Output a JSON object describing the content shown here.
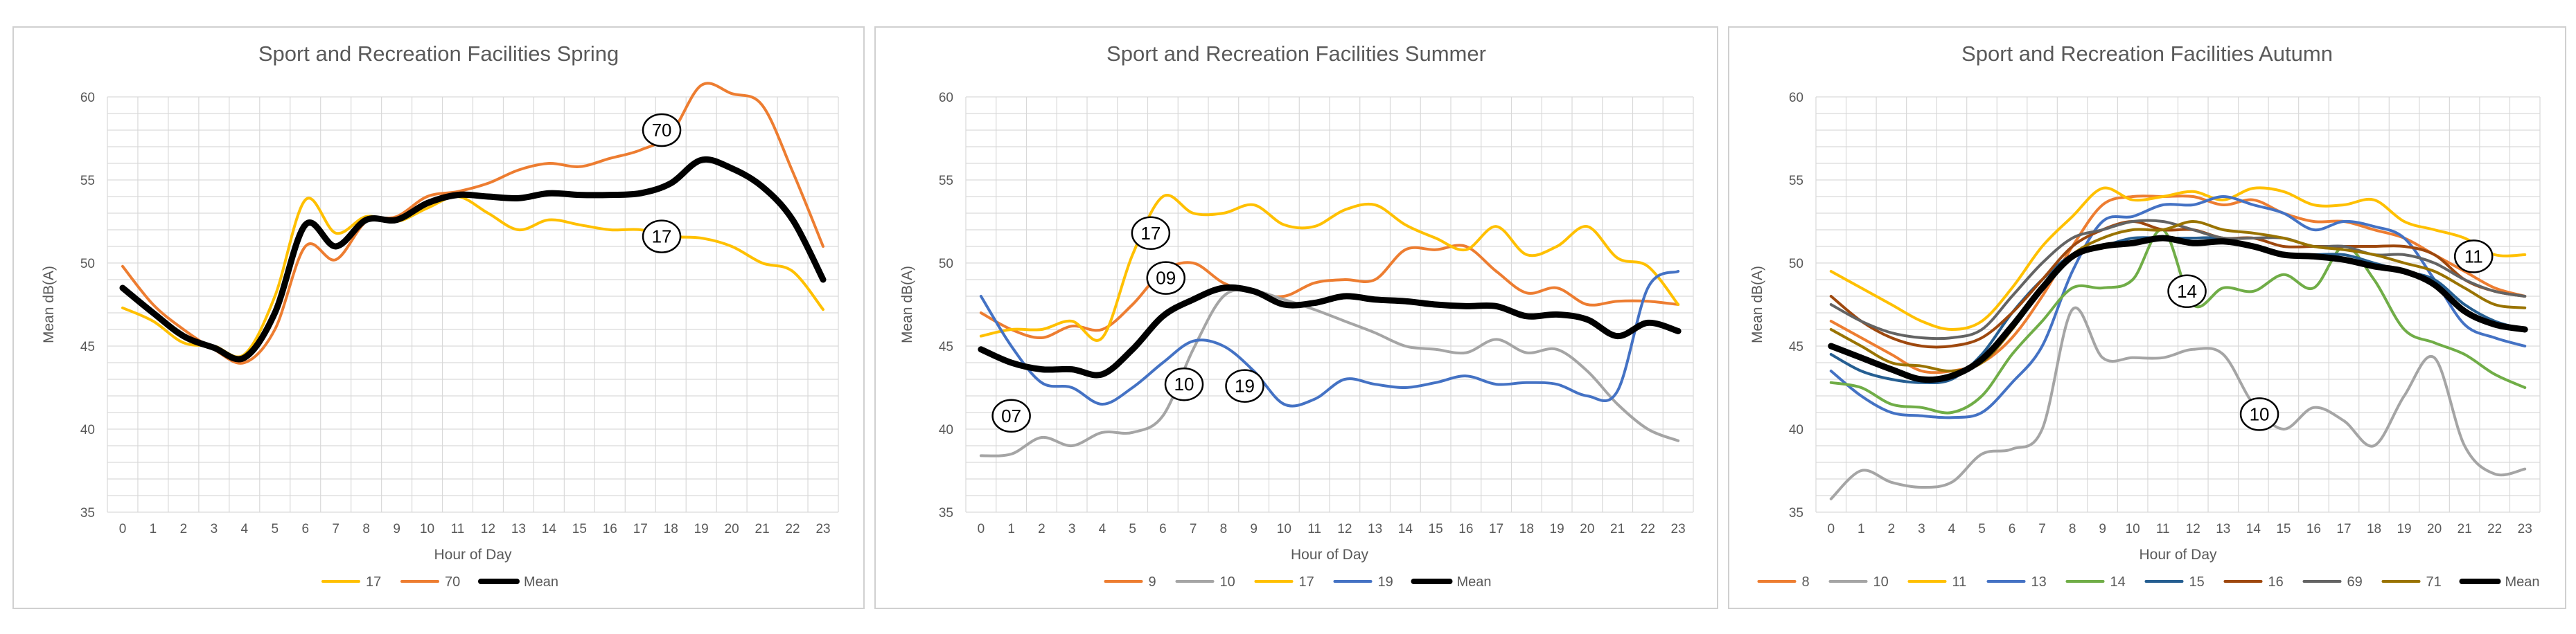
{
  "chart_data": [
    {
      "type": "line",
      "title": "Sport and Recreation Facilities Spring",
      "xlabel": "Hour of Day",
      "ylabel": "Mean dB(A)",
      "categories": [
        "0",
        "1",
        "2",
        "3",
        "4",
        "5",
        "6",
        "7",
        "8",
        "9",
        "10",
        "11",
        "12",
        "13",
        "14",
        "15",
        "16",
        "17",
        "18",
        "19",
        "20",
        "21",
        "22",
        "23"
      ],
      "ylim": [
        35,
        60
      ],
      "yticks": [
        35,
        40,
        45,
        50,
        55,
        60
      ],
      "grid": true,
      "legend_position": "bottom",
      "series": [
        {
          "name": "17",
          "color": "#FFC000",
          "width": 4,
          "values": [
            47.3,
            46.5,
            45.2,
            45.0,
            44.5,
            48.0,
            53.8,
            51.8,
            52.8,
            52.5,
            53.3,
            54.0,
            53.0,
            52.0,
            52.6,
            52.3,
            52.0,
            52.0,
            51.6,
            51.5,
            51.0,
            50.0,
            49.5,
            47.2
          ]
        },
        {
          "name": "70",
          "color": "#ED7D31",
          "width": 4,
          "values": [
            49.8,
            47.5,
            46.0,
            44.8,
            44.0,
            46.0,
            51.0,
            50.2,
            52.5,
            52.8,
            54.0,
            54.3,
            54.8,
            55.6,
            56.0,
            55.8,
            56.3,
            56.8,
            57.8,
            60.7,
            60.2,
            59.5,
            55.5,
            51.0
          ]
        },
        {
          "name": "Mean",
          "color": "#000000",
          "width": 9,
          "values": [
            48.5,
            47.0,
            45.6,
            44.9,
            44.3,
            47.0,
            52.3,
            51.0,
            52.6,
            52.6,
            53.6,
            54.1,
            54.0,
            53.9,
            54.2,
            54.1,
            54.1,
            54.2,
            54.8,
            56.2,
            55.7,
            54.6,
            52.6,
            49.0
          ]
        }
      ],
      "annotations": [
        {
          "text": "70",
          "x": 17.7,
          "y": 58.0
        },
        {
          "text": "17",
          "x": 17.7,
          "y": 51.6
        }
      ]
    },
    {
      "type": "line",
      "title": "Sport and Recreation Facilities Summer",
      "xlabel": "Hour of Day",
      "ylabel": "Mean dB(A)",
      "categories": [
        "0",
        "1",
        "2",
        "3",
        "4",
        "5",
        "6",
        "7",
        "8",
        "9",
        "10",
        "11",
        "12",
        "13",
        "14",
        "15",
        "16",
        "17",
        "18",
        "19",
        "20",
        "21",
        "22",
        "23"
      ],
      "ylim": [
        35,
        60
      ],
      "yticks": [
        35,
        40,
        45,
        50,
        55,
        60
      ],
      "grid": true,
      "legend_position": "bottom",
      "series": [
        {
          "name": "9",
          "color": "#ED7D31",
          "width": 4,
          "values": [
            47.0,
            46.0,
            45.5,
            46.2,
            46.0,
            47.5,
            49.5,
            50.0,
            48.8,
            48.2,
            48.0,
            48.8,
            49.0,
            49.0,
            50.8,
            50.8,
            51.0,
            49.5,
            48.2,
            48.5,
            47.5,
            47.7,
            47.7,
            47.5
          ]
        },
        {
          "name": "10",
          "color": "#A5A5A5",
          "width": 4,
          "values": [
            38.4,
            38.5,
            39.5,
            39.0,
            39.8,
            39.8,
            40.8,
            44.8,
            48.0,
            48.3,
            47.8,
            47.2,
            46.5,
            45.8,
            45.0,
            44.8,
            44.6,
            45.4,
            44.6,
            44.8,
            43.5,
            41.5,
            40.0,
            39.3
          ]
        },
        {
          "name": "17",
          "color": "#FFC000",
          "width": 4,
          "values": [
            45.6,
            46.0,
            46.0,
            46.5,
            45.5,
            50.5,
            54.0,
            53.0,
            53.0,
            53.5,
            52.3,
            52.2,
            53.2,
            53.5,
            52.3,
            51.5,
            50.8,
            52.2,
            50.5,
            51.0,
            52.2,
            50.3,
            49.8,
            47.5
          ]
        },
        {
          "name": "19",
          "color": "#4472C4",
          "width": 4,
          "values": [
            48.0,
            45.0,
            42.8,
            42.5,
            41.5,
            42.5,
            44.0,
            45.3,
            45.0,
            43.5,
            41.5,
            41.8,
            43.0,
            42.7,
            42.5,
            42.8,
            43.2,
            42.7,
            42.8,
            42.7,
            42.0,
            42.3,
            48.5,
            49.5
          ]
        },
        {
          "name": "Mean",
          "color": "#000000",
          "width": 9,
          "values": [
            44.8,
            44.0,
            43.6,
            43.6,
            43.3,
            44.8,
            46.8,
            47.8,
            48.5,
            48.3,
            47.5,
            47.6,
            48.0,
            47.8,
            47.7,
            47.5,
            47.4,
            47.4,
            46.8,
            46.9,
            46.6,
            45.6,
            46.4,
            45.9
          ]
        }
      ],
      "annotations": [
        {
          "text": "17",
          "x": 5.6,
          "y": 51.8
        },
        {
          "text": "09",
          "x": 6.1,
          "y": 49.1
        },
        {
          "text": "07",
          "x": 1.0,
          "y": 40.8
        },
        {
          "text": "10",
          "x": 6.7,
          "y": 42.7
        },
        {
          "text": "19",
          "x": 8.7,
          "y": 42.6
        }
      ]
    },
    {
      "type": "line",
      "title": "Sport and Recreation Facilities Autumn",
      "xlabel": "Hour of Day",
      "ylabel": "Mean dB(A)",
      "categories": [
        "0",
        "1",
        "2",
        "3",
        "4",
        "5",
        "6",
        "7",
        "8",
        "9",
        "10",
        "11",
        "12",
        "13",
        "14",
        "15",
        "16",
        "17",
        "18",
        "19",
        "20",
        "21",
        "22",
        "23"
      ],
      "ylim": [
        35,
        60
      ],
      "yticks": [
        35,
        40,
        45,
        50,
        55,
        60
      ],
      "grid": true,
      "legend_position": "bottom",
      "series": [
        {
          "name": "8",
          "color": "#ED7D31",
          "width": 4,
          "values": [
            46.5,
            45.5,
            44.5,
            43.5,
            43.5,
            44.0,
            45.5,
            48.0,
            51.0,
            53.5,
            54.0,
            54.0,
            54.0,
            53.5,
            53.8,
            53.0,
            52.5,
            52.5,
            52.0,
            51.5,
            50.5,
            49.5,
            48.5,
            48.0
          ]
        },
        {
          "name": "10",
          "color": "#A5A5A5",
          "width": 4,
          "values": [
            35.8,
            37.5,
            36.8,
            36.5,
            36.8,
            38.5,
            38.8,
            40.0,
            47.2,
            44.3,
            44.3,
            44.3,
            44.8,
            44.5,
            41.5,
            40.0,
            41.3,
            40.5,
            39.0,
            42.0,
            44.3,
            39.0,
            37.3,
            37.6
          ]
        },
        {
          "name": "11",
          "color": "#FFC000",
          "width": 4,
          "values": [
            49.5,
            48.5,
            47.5,
            46.5,
            46.0,
            46.5,
            48.5,
            51.0,
            52.8,
            54.5,
            53.8,
            54.0,
            54.3,
            53.8,
            54.5,
            54.3,
            53.5,
            53.5,
            53.8,
            52.5,
            52.0,
            51.5,
            50.5,
            50.5
          ]
        },
        {
          "name": "13",
          "color": "#4472C4",
          "width": 4,
          "values": [
            43.5,
            42.0,
            41.0,
            40.8,
            40.7,
            41.0,
            42.8,
            45.0,
            49.5,
            52.5,
            52.8,
            53.5,
            53.5,
            54.0,
            53.5,
            53.0,
            52.0,
            52.5,
            52.2,
            51.5,
            49.0,
            46.3,
            45.5,
            45.0
          ]
        },
        {
          "name": "14",
          "color": "#70AD47",
          "width": 4,
          "values": [
            42.8,
            42.5,
            41.5,
            41.3,
            41.0,
            42.0,
            44.5,
            46.5,
            48.5,
            48.5,
            49.0,
            52.0,
            47.5,
            48.5,
            48.3,
            49.3,
            48.5,
            51.0,
            49.0,
            46.0,
            45.2,
            44.5,
            43.3,
            42.5
          ]
        },
        {
          "name": "15",
          "color": "#255E91",
          "width": 4,
          "values": [
            44.5,
            43.5,
            43.0,
            42.8,
            43.0,
            44.5,
            47.0,
            49.0,
            50.5,
            51.0,
            51.5,
            51.5,
            51.5,
            51.5,
            51.0,
            50.5,
            50.5,
            50.5,
            50.0,
            49.5,
            49.0,
            47.5,
            46.5,
            46.0
          ]
        },
        {
          "name": "16",
          "color": "#9E480E",
          "width": 4,
          "values": [
            48.0,
            46.5,
            45.5,
            45.0,
            45.0,
            45.5,
            47.0,
            49.0,
            51.0,
            52.0,
            52.5,
            52.0,
            52.0,
            51.5,
            51.5,
            51.0,
            51.0,
            51.0,
            51.0,
            51.0,
            50.5,
            49.0,
            48.3,
            48.0
          ]
        },
        {
          "name": "69",
          "color": "#636363",
          "width": 4,
          "values": [
            47.5,
            46.5,
            45.8,
            45.5,
            45.5,
            46.0,
            48.0,
            50.0,
            51.5,
            52.0,
            52.5,
            52.5,
            52.0,
            51.5,
            51.5,
            51.5,
            51.0,
            51.0,
            50.5,
            50.5,
            50.0,
            49.0,
            48.3,
            48.0
          ]
        },
        {
          "name": "71",
          "color": "#997300",
          "width": 4,
          "values": [
            46.0,
            45.0,
            44.0,
            43.8,
            43.5,
            44.0,
            46.0,
            48.5,
            50.5,
            51.5,
            52.0,
            52.0,
            52.5,
            52.0,
            51.8,
            51.5,
            51.0,
            50.8,
            50.5,
            50.0,
            49.5,
            48.5,
            47.5,
            47.3
          ]
        },
        {
          "name": "Mean",
          "color": "#000000",
          "width": 9,
          "values": [
            45.0,
            44.3,
            43.6,
            43.0,
            43.2,
            44.2,
            46.2,
            48.5,
            50.4,
            51.0,
            51.2,
            51.5,
            51.2,
            51.3,
            51.0,
            50.5,
            50.4,
            50.2,
            49.8,
            49.5,
            48.7,
            47.1,
            46.3,
            46.0
          ]
        }
      ],
      "annotations": [
        {
          "text": "11",
          "x": 21.3,
          "y": 50.4
        },
        {
          "text": "14",
          "x": 11.8,
          "y": 48.3
        },
        {
          "text": "10",
          "x": 14.2,
          "y": 40.9
        }
      ]
    }
  ]
}
